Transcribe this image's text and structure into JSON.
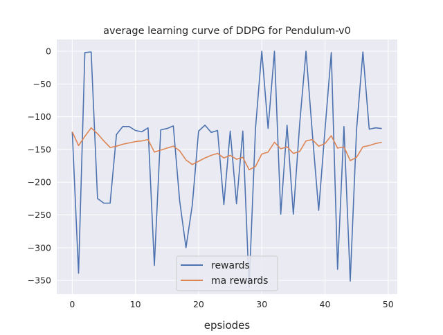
{
  "chart_data": {
    "type": "line",
    "title": "average learning curve of DDPG for Pendulum-v0",
    "xlabel": "epsiodes",
    "ylabel": "",
    "xlim": [
      -2.45,
      51.45
    ],
    "ylim": [
      -371,
      18
    ],
    "xticks": [
      0,
      10,
      20,
      30,
      40,
      50
    ],
    "yticks": [
      0,
      -50,
      -100,
      -150,
      -200,
      -250,
      -300,
      -350
    ],
    "grid": true,
    "legend_position": "lower-center",
    "x": [
      0,
      1,
      2,
      3,
      4,
      5,
      6,
      7,
      8,
      9,
      10,
      11,
      12,
      13,
      14,
      15,
      16,
      17,
      18,
      19,
      20,
      21,
      22,
      23,
      24,
      25,
      26,
      27,
      28,
      29,
      30,
      31,
      32,
      33,
      34,
      35,
      36,
      37,
      38,
      39,
      40,
      41,
      42,
      43,
      44,
      45,
      46,
      47,
      48,
      49
    ],
    "series": [
      {
        "name": "rewards",
        "color": "#4c72b0",
        "values": [
          -123,
          -339,
          -2,
          -1,
          -225,
          -232,
          -232,
          -127,
          -115,
          -115,
          -121,
          -123,
          -117,
          -327,
          -120,
          -118,
          -114,
          -228,
          -300,
          -235,
          -122,
          -113,
          -124,
          -121,
          -234,
          -122,
          -233,
          -122,
          -360,
          -118,
          0,
          -118,
          0,
          -249,
          -113,
          -249,
          -110,
          0,
          -125,
          -243,
          -120,
          -2,
          -333,
          -115,
          -351,
          -120,
          -1,
          -119,
          -117,
          -118
        ]
      },
      {
        "name": "ma rewards",
        "color": "#dd8452",
        "values": [
          -123,
          -144,
          -130,
          -117,
          -126,
          -137,
          -147,
          -145,
          -142,
          -140,
          -138,
          -137,
          -135,
          -154,
          -151,
          -148,
          -145,
          -152,
          -166,
          -173,
          -168,
          -163,
          -159,
          -156,
          -163,
          -159,
          -165,
          -162,
          -181,
          -176,
          -157,
          -154,
          -139,
          -149,
          -146,
          -156,
          -153,
          -137,
          -135,
          -145,
          -141,
          -129,
          -148,
          -146,
          -167,
          -162,
          -146,
          -144,
          -141,
          -139
        ]
      }
    ]
  }
}
